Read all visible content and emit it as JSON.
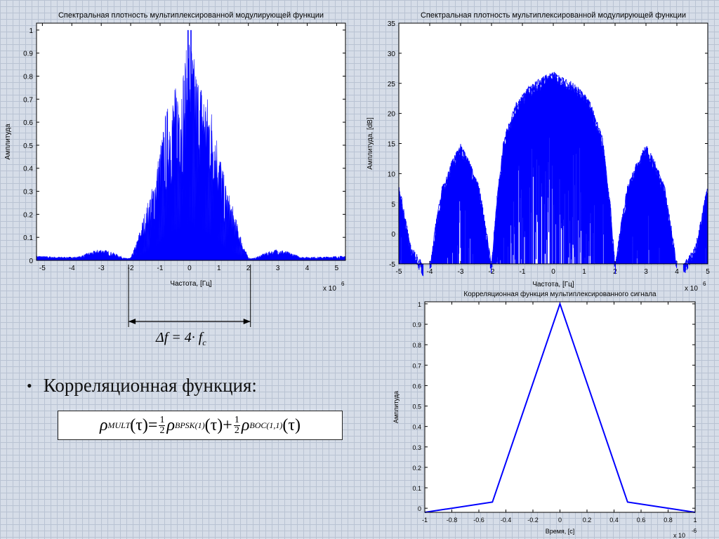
{
  "chart_data": [
    {
      "id": "spec_lin",
      "type": "line",
      "title": "Спектральная плотность мультиплексированной модулирующей функции",
      "xlabel": "Частота, [Гц]",
      "ylabel": "Амплитуда",
      "x_multiplier": "x 10",
      "x_multiplier_exp": "6",
      "xlim": [
        -5.2,
        5.3
      ],
      "ylim": [
        0,
        1.03
      ],
      "xticks": [
        -5,
        -4,
        -3,
        -2,
        -1,
        0,
        1,
        2,
        3,
        4,
        5
      ],
      "xtick_labels": [
        "-5",
        "-4",
        "-3",
        "-2",
        "-1",
        "0",
        "1",
        "2",
        "3",
        "4",
        "5"
      ],
      "yticks": [
        0,
        0.1,
        0.2,
        0.3,
        0.4,
        0.5,
        0.6,
        0.7,
        0.8,
        0.9,
        1
      ],
      "ytick_labels": [
        "0",
        "0.1",
        "0.2",
        "0.3",
        "0.4",
        "0.5",
        "0.6",
        "0.7",
        "0.8",
        "0.9",
        "1"
      ],
      "grid": false,
      "envelope": {
        "x": [
          -5.2,
          -4.5,
          -3.8,
          -3.4,
          -3.0,
          -2.6,
          -2.2,
          -2.0,
          -1.8,
          -1.5,
          -1.2,
          -1.0,
          -0.8,
          -0.6,
          -0.4,
          -0.2,
          0.0,
          0.2,
          0.4,
          0.6,
          0.8,
          1.0,
          1.2,
          1.5,
          1.8,
          2.0,
          2.2,
          2.6,
          3.0,
          3.4,
          3.8,
          4.5,
          5.3
        ],
        "y": [
          0.02,
          0.015,
          0.015,
          0.035,
          0.05,
          0.035,
          0.01,
          0.01,
          0.08,
          0.22,
          0.35,
          0.5,
          0.65,
          0.72,
          0.78,
          0.85,
          1.0,
          0.85,
          0.78,
          0.72,
          0.65,
          0.5,
          0.35,
          0.22,
          0.08,
          0.01,
          0.01,
          0.035,
          0.05,
          0.035,
          0.015,
          0.015,
          0.02
        ]
      },
      "annotation": {
        "from_x": -2,
        "to_x": 2,
        "label": "Δf = 4· f",
        "label_sub": "c"
      }
    },
    {
      "id": "spec_db",
      "type": "line",
      "title": "Спектральная плотность мультиплексированной модулирующей функции",
      "xlabel": "Частота, [Гц]",
      "ylabel": "Амплитуда, [dB]",
      "x_multiplier": "x 10",
      "x_multiplier_exp": "6",
      "xlim": [
        -5,
        5
      ],
      "ylim": [
        -5,
        35
      ],
      "xticks": [
        -5,
        -4,
        -3,
        -2,
        -1,
        0,
        1,
        2,
        3,
        4,
        5
      ],
      "xtick_labels": [
        "-5",
        "-4",
        "-3",
        "-2",
        "-1",
        "0",
        "1",
        "2",
        "3",
        "4",
        "5"
      ],
      "yticks": [
        -5,
        0,
        5,
        10,
        15,
        20,
        25,
        30,
        35
      ],
      "ytick_labels": [
        "-5",
        "0",
        "5",
        "10",
        "15",
        "20",
        "25",
        "30",
        "35"
      ],
      "grid": false,
      "envelope": {
        "x": [
          -5.0,
          -4.9,
          -4.8,
          -4.6,
          -4.2,
          -4.0,
          -3.8,
          -3.6,
          -3.3,
          -3.0,
          -2.7,
          -2.4,
          -2.2,
          -2.0,
          -1.85,
          -1.6,
          -1.2,
          -0.8,
          -0.4,
          0.0,
          0.4,
          0.8,
          1.2,
          1.6,
          1.85,
          2.0,
          2.2,
          2.4,
          2.7,
          3.0,
          3.3,
          3.6,
          3.8,
          4.0,
          4.2,
          4.6,
          4.8,
          4.9,
          5.0
        ],
        "y": [
          8,
          6,
          3,
          -2,
          -5,
          -5,
          2,
          8,
          12,
          15,
          12,
          8,
          2,
          -5,
          5,
          16,
          22,
          24.5,
          26,
          27,
          26,
          24.5,
          22,
          16,
          5,
          -5,
          2,
          8,
          12,
          15,
          12,
          8,
          2,
          -5,
          -5,
          -2,
          3,
          6,
          8
        ]
      }
    },
    {
      "id": "corr",
      "type": "line",
      "title": "Корреляционная функция мультиплексированного сигнала",
      "xlabel": "Время, [c]",
      "ylabel": "Амплитуда",
      "x_multiplier": "x 10",
      "x_multiplier_exp": "-6",
      "xlim": [
        -1,
        1
      ],
      "ylim": [
        -0.02,
        1.01
      ],
      "xticks": [
        -1,
        -0.8,
        -0.6,
        -0.4,
        -0.2,
        0,
        0.2,
        0.4,
        0.6,
        0.8,
        1
      ],
      "xtick_labels": [
        "-1",
        "-0.8",
        "-0.6",
        "-0.4",
        "-0.2",
        "0",
        "0.2",
        "0.4",
        "0.6",
        "0.8",
        "1"
      ],
      "yticks": [
        0,
        0.1,
        0.2,
        0.3,
        0.4,
        0.5,
        0.6,
        0.7,
        0.8,
        0.9,
        1
      ],
      "ytick_labels": [
        "0",
        "0.1",
        "0.2",
        "0.3",
        "0.4",
        "0.5",
        "0.6",
        "0.7",
        "0.8",
        "0.9",
        "1"
      ],
      "grid": false,
      "series": [
        {
          "x": [
            -1,
            -0.5,
            0,
            0.5,
            1
          ],
          "y": [
            -0.02,
            0.03,
            1.0,
            0.03,
            -0.02
          ]
        }
      ]
    }
  ],
  "text": {
    "bullet": "•",
    "bullet_text": "Корреляционная функция:",
    "formula": {
      "rho": "ρ",
      "sub_mult": "MULT",
      "tau_arg": "(τ)=",
      "num": "1",
      "den": "2",
      "sub_bpsk": "BPSK(1)",
      "plus": "(τ)+",
      "sub_boc": "BOC(1,1)",
      "tau_end": "(τ)"
    }
  },
  "colors": {
    "signal": "#0000ff",
    "axes": "#000000",
    "plot_bg": "#ffffff"
  }
}
